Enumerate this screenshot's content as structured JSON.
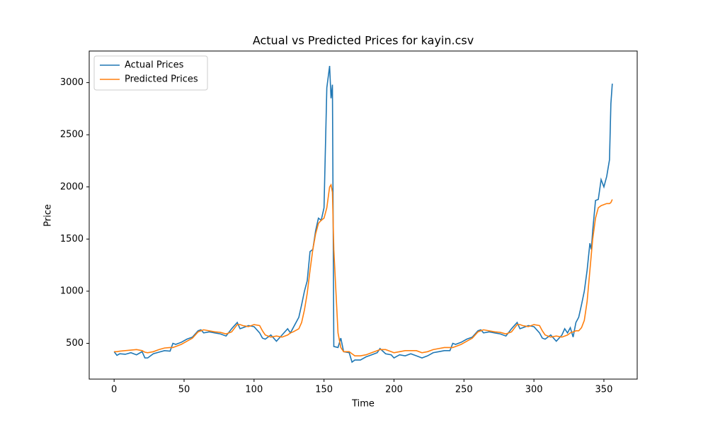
{
  "chart_data": {
    "type": "line",
    "title": "Actual vs Predicted Prices for kayin.csv",
    "x_label": "Time",
    "y_label": "Price",
    "x": [
      0,
      2,
      4,
      8,
      12,
      16,
      20,
      22,
      24,
      28,
      32,
      36,
      40,
      42,
      44,
      48,
      52,
      56,
      60,
      62,
      64,
      68,
      72,
      76,
      80,
      84,
      88,
      90,
      92,
      96,
      100,
      104,
      106,
      108,
      112,
      116,
      120,
      124,
      126,
      128,
      132,
      134,
      136,
      138,
      140,
      142,
      144,
      146,
      148,
      150,
      152,
      154,
      155,
      156,
      157,
      160,
      162,
      164,
      168,
      170,
      172,
      176,
      180,
      184,
      188,
      190,
      194,
      198,
      200,
      204,
      208,
      212,
      216,
      220,
      224,
      228,
      232,
      236,
      240,
      242,
      244,
      248,
      252,
      256,
      260,
      262,
      264,
      268,
      272,
      276,
      280,
      284,
      288,
      290,
      292,
      296,
      300,
      304,
      306,
      308,
      312,
      316,
      320,
      322,
      324,
      326,
      328,
      330,
      332,
      334,
      336,
      338,
      340,
      341,
      342,
      344,
      346,
      348,
      350,
      352,
      354,
      355,
      356
    ],
    "series": [
      {
        "name": "Actual Prices",
        "color": "#1f77b4",
        "values": [
          420,
          385,
          400,
          395,
          410,
          390,
          420,
          360,
          360,
          400,
          415,
          430,
          425,
          500,
          490,
          510,
          540,
          560,
          620,
          630,
          600,
          610,
          600,
          590,
          570,
          640,
          700,
          640,
          650,
          670,
          660,
          600,
          550,
          540,
          580,
          520,
          580,
          640,
          600,
          650,
          750,
          870,
          1000,
          1100,
          1380,
          1400,
          1580,
          1700,
          1680,
          1800,
          2950,
          3160,
          2850,
          2980,
          470,
          460,
          550,
          420,
          410,
          320,
          340,
          340,
          370,
          390,
          410,
          450,
          400,
          390,
          360,
          390,
          380,
          400,
          380,
          360,
          380,
          410,
          420,
          430,
          430,
          500,
          490,
          510,
          540,
          560,
          620,
          630,
          600,
          610,
          600,
          590,
          570,
          640,
          700,
          640,
          650,
          670,
          660,
          600,
          550,
          540,
          580,
          520,
          580,
          640,
          600,
          650,
          560,
          700,
          750,
          870,
          1000,
          1200,
          1460,
          1400,
          1580,
          1870,
          1880,
          2070,
          2000,
          2100,
          2260,
          2800,
          2990
        ]
      },
      {
        "name": "Predicted Prices",
        "color": "#ff7f0e",
        "values": [
          420,
          420,
          425,
          430,
          435,
          440,
          430,
          415,
          410,
          420,
          440,
          455,
          460,
          460,
          470,
          490,
          520,
          550,
          610,
          620,
          630,
          620,
          610,
          605,
          590,
          610,
          680,
          680,
          670,
          660,
          680,
          670,
          620,
          580,
          560,
          570,
          560,
          580,
          600,
          610,
          640,
          700,
          820,
          980,
          1200,
          1400,
          1550,
          1650,
          1680,
          1700,
          1800,
          2000,
          2020,
          1950,
          1400,
          600,
          460,
          420,
          420,
          400,
          380,
          380,
          390,
          410,
          430,
          440,
          440,
          420,
          410,
          420,
          430,
          430,
          430,
          410,
          420,
          440,
          450,
          460,
          460,
          460,
          470,
          490,
          520,
          550,
          610,
          620,
          630,
          620,
          610,
          605,
          590,
          610,
          680,
          680,
          670,
          660,
          680,
          670,
          620,
          580,
          560,
          570,
          560,
          570,
          580,
          600,
          610,
          620,
          620,
          650,
          720,
          900,
          1200,
          1350,
          1500,
          1700,
          1800,
          1820,
          1830,
          1840,
          1840,
          1850,
          1880
        ]
      }
    ],
    "xlim": [
      -17.8,
      373.8
    ],
    "ylim": [
      157,
      3303
    ],
    "xticks": [
      0,
      50,
      100,
      150,
      200,
      250,
      300,
      350
    ],
    "yticks": [
      500,
      1000,
      1500,
      2000,
      2500,
      3000
    ],
    "legend": "upper left"
  }
}
